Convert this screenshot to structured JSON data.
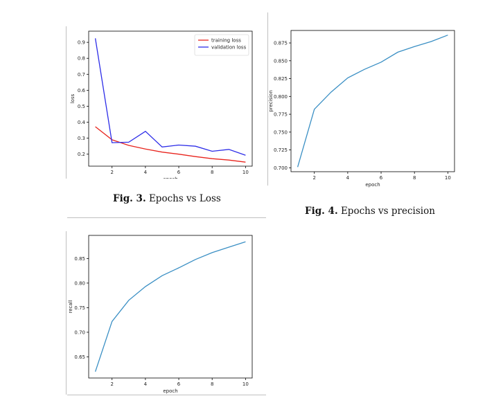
{
  "figures": [
    {
      "caption_label": "Fig. 3.",
      "caption_text": "Epochs vs Loss",
      "chart_data": {
        "type": "line",
        "xlabel": "epoch",
        "ylabel": "loss",
        "xlim": [
          0.6,
          10.4
        ],
        "ylim": [
          0.125,
          0.97
        ],
        "xticks": [
          2,
          4,
          6,
          8,
          10
        ],
        "yticks": [
          0.2,
          0.3,
          0.4,
          0.5,
          0.6,
          0.7,
          0.8,
          0.9
        ],
        "tick_format": 1,
        "grid": false,
        "legend_position": "top-right",
        "x": [
          1,
          2,
          3,
          4,
          5,
          6,
          7,
          8,
          9,
          10
        ],
        "series": [
          {
            "name": "training loss",
            "color": "#e8231c",
            "values": [
              0.372,
              0.29,
              0.255,
              0.232,
              0.213,
              0.2,
              0.185,
              0.172,
              0.163,
              0.15
            ]
          },
          {
            "name": "validation loss",
            "color": "#2c2ce8",
            "values": [
              0.925,
              0.272,
              0.275,
              0.343,
              0.245,
              0.257,
              0.25,
              0.218,
              0.23,
              0.193
            ]
          }
        ]
      }
    },
    {
      "caption_label": "Fig. 4.",
      "caption_text": "Epochs vs precision",
      "chart_data": {
        "type": "line",
        "xlabel": "epoch",
        "ylabel": "precision",
        "xlim": [
          0.6,
          10.4
        ],
        "ylim": [
          0.6945,
          0.8925
        ],
        "xticks": [
          2,
          4,
          6,
          8,
          10
        ],
        "yticks": [
          0.7,
          0.725,
          0.75,
          0.775,
          0.8,
          0.825,
          0.85,
          0.875
        ],
        "tick_format": 3,
        "grid": false,
        "x": [
          1,
          2,
          3,
          4,
          5,
          6,
          7,
          8,
          9,
          10
        ],
        "series": [
          {
            "name": "",
            "color": "#3a8fc4",
            "values": [
              0.701,
              0.782,
              0.806,
              0.826,
              0.838,
              0.848,
              0.862,
              0.87,
              0.877,
              0.886
            ]
          }
        ]
      }
    },
    {
      "caption_label": "",
      "caption_text": "",
      "chart_data": {
        "type": "line",
        "xlabel": "epoch",
        "ylabel": "recall",
        "xlim": [
          0.6,
          10.4
        ],
        "ylim": [
          0.607,
          0.897
        ],
        "xticks": [
          2,
          4,
          6,
          8,
          10
        ],
        "yticks": [
          0.65,
          0.7,
          0.75,
          0.8,
          0.85
        ],
        "tick_format": 2,
        "grid": false,
        "x": [
          1,
          2,
          3,
          4,
          5,
          6,
          7,
          8,
          9,
          10
        ],
        "series": [
          {
            "name": "",
            "color": "#3a8fc4",
            "values": [
              0.62,
              0.722,
              0.765,
              0.793,
              0.815,
              0.831,
              0.848,
              0.862,
              0.873,
              0.884
            ]
          }
        ]
      }
    }
  ]
}
